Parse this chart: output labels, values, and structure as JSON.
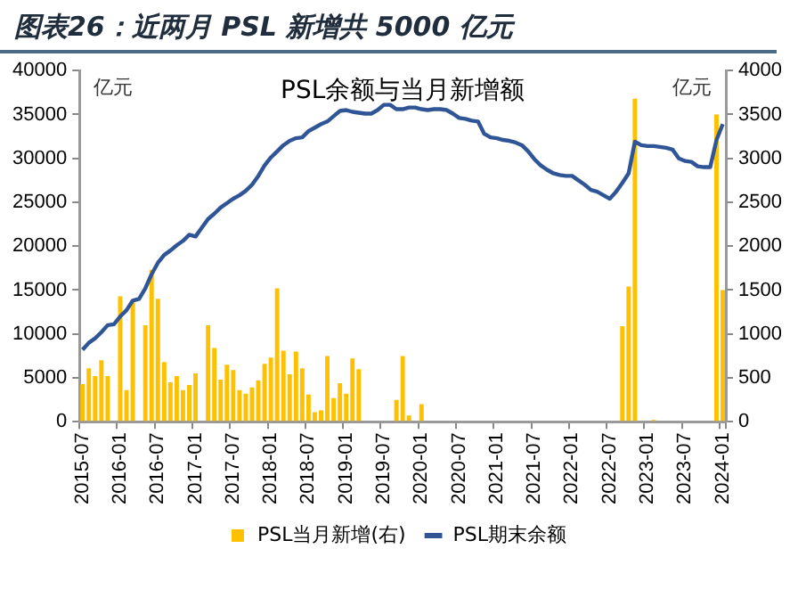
{
  "chart_data": {
    "type": "bar",
    "title": "图表26：近两月 PSL 新增共 5000 亿元",
    "subtitle": "PSL余额与当月新增额",
    "ylabel": "亿元",
    "y2label": "亿元",
    "categories": [
      "2015-07",
      null,
      null,
      null,
      null,
      null,
      "2016-01",
      null,
      null,
      null,
      null,
      null,
      "2016-07",
      null,
      null,
      null,
      null,
      null,
      "2017-01",
      null,
      null,
      null,
      null,
      null,
      "2017-07",
      null,
      null,
      null,
      null,
      null,
      "2018-01",
      null,
      null,
      null,
      null,
      null,
      "2018-07",
      null,
      null,
      null,
      null,
      null,
      "2019-01",
      null,
      null,
      null,
      null,
      null,
      "2019-07",
      null,
      null,
      null,
      null,
      null,
      "2020-01",
      null,
      null,
      null,
      null,
      null,
      "2020-07",
      null,
      null,
      null,
      null,
      null,
      "2021-01",
      null,
      null,
      null,
      null,
      null,
      "2021-07",
      null,
      null,
      null,
      null,
      null,
      "2022-01",
      null,
      null,
      null,
      null,
      null,
      "2022-07",
      null,
      null,
      null,
      null,
      null,
      "2023-01",
      null,
      null,
      null,
      null,
      null,
      "2023-07",
      null,
      null,
      null,
      null,
      null,
      "2024-01"
    ],
    "series": [
      {
        "name": "PSL当月新增(右)",
        "axis": "y2",
        "color": "#ffc000",
        "values": [
          430,
          610,
          520,
          700,
          520,
          0,
          1430,
          360,
          1360,
          0,
          1100,
          1730,
          1400,
          680,
          450,
          520,
          360,
          420,
          550,
          0,
          1100,
          840,
          480,
          650,
          590,
          360,
          320,
          390,
          470,
          660,
          730,
          1520,
          810,
          540,
          800,
          610,
          310,
          110,
          130,
          750,
          270,
          440,
          320,
          720,
          600,
          0,
          0,
          0,
          0,
          0,
          250,
          750,
          70,
          0,
          200,
          0,
          0,
          0,
          0,
          0,
          0,
          0,
          0,
          0,
          0,
          0,
          0,
          0,
          0,
          0,
          0,
          0,
          0,
          0,
          0,
          0,
          0,
          0,
          0,
          0,
          0,
          0,
          0,
          0,
          0,
          0,
          1090,
          1540,
          3680,
          0,
          0,
          20,
          0,
          0,
          0,
          0,
          0,
          0,
          0,
          0,
          0,
          3500,
          1500
        ]
      },
      {
        "name": "PSL期末余额",
        "type": "line",
        "color": "#2f5597",
        "values": [
          8200,
          9000,
          9500,
          10200,
          11000,
          11100,
          12000,
          12700,
          13800,
          14000,
          15200,
          16800,
          18100,
          19000,
          19500,
          20100,
          20600,
          21300,
          21100,
          22100,
          23100,
          23700,
          24400,
          24900,
          25400,
          25800,
          26300,
          27000,
          28000,
          29200,
          30100,
          30800,
          31500,
          32000,
          32300,
          32400,
          33100,
          33500,
          33900,
          34200,
          34800,
          35400,
          35500,
          35300,
          35200,
          35100,
          35100,
          35500,
          36100,
          36100,
          35600,
          35600,
          35800,
          35800,
          35600,
          35500,
          35600,
          35600,
          35500,
          35100,
          34600,
          34500,
          34300,
          34200,
          32800,
          32400,
          32300,
          32100,
          32000,
          31800,
          31500,
          30800,
          29900,
          29200,
          28700,
          28300,
          28100,
          28000,
          28000,
          27500,
          27000,
          26400,
          26200,
          25800,
          25400,
          26200,
          27200,
          28300,
          31900,
          31500,
          31400,
          31400,
          31300,
          31200,
          31000,
          30000,
          29700,
          29600,
          29100,
          29000,
          29000,
          32100,
          33900
        ]
      }
    ],
    "ylim": [
      0,
      40000
    ],
    "yticks": [
      0,
      5000,
      10000,
      15000,
      20000,
      25000,
      30000,
      35000,
      40000
    ],
    "y2lim": [
      0,
      4000
    ],
    "y2ticks": [
      0,
      500,
      1000,
      1500,
      2000,
      2500,
      3000,
      3500,
      4000
    ],
    "legend": "bottom",
    "marker": "none"
  }
}
